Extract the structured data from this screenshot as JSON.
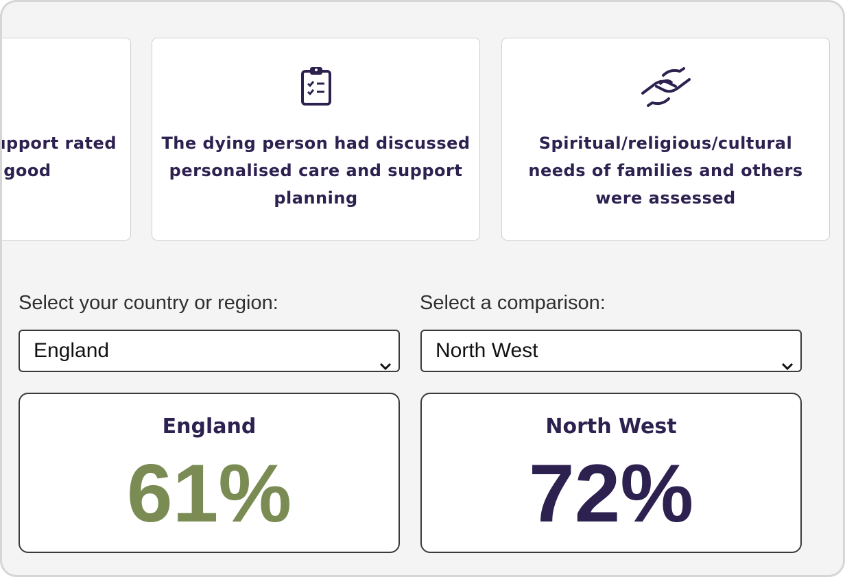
{
  "cards": [
    {
      "line1": "upport rated",
      "line2": "r good",
      "icon": "none"
    },
    {
      "text": "The dying person had discussed personalised care and support planning",
      "icon": "clipboard-checklist-icon"
    },
    {
      "text": "Spiritual/religious/cultural needs of families and others were assessed",
      "icon": "handshake-icon"
    }
  ],
  "selectors": {
    "region_label": "Select your country or region:",
    "region_value": "England",
    "comparison_label": "Select a comparison:",
    "comparison_value": "North West"
  },
  "results": {
    "primary": {
      "name": "England",
      "value": "61%",
      "color": "#7a8c53"
    },
    "comparison": {
      "name": "North West",
      "value": "72%",
      "color": "#2d2150"
    }
  },
  "colors": {
    "brand_text": "#2d2150",
    "primary_green": "#7a8c53"
  }
}
